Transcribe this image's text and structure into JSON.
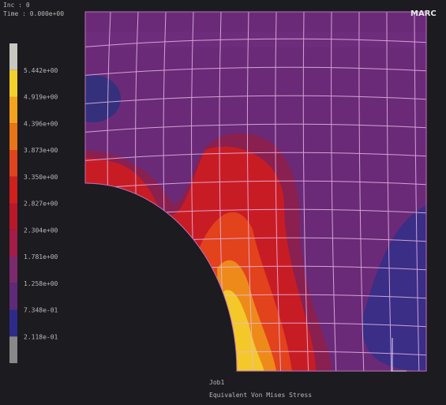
{
  "header": {
    "inc": "Inc : 0",
    "time": "Time : 0.000e+00",
    "logo": "MARC"
  },
  "legend": {
    "labels": [
      "5.442e+00",
      "4.919e+00",
      "4.396e+00",
      "3.873e+00",
      "3.350e+00",
      "2.827e+00",
      "2.304e+00",
      "1.781e+00",
      "1.258e+00",
      "7.348e-01",
      "2.118e-01"
    ],
    "colors": [
      "#c8c8c0",
      "#f2d22a",
      "#f2a21e",
      "#ea7418",
      "#e0441c",
      "#d0201e",
      "#b8182a",
      "#a41c48",
      "#7c2a6e",
      "#5e2a78",
      "#2e2a8a",
      "#888888"
    ]
  },
  "footer": {
    "job": "Job1",
    "quantity": "Equivalent Von Mises Stress"
  }
}
